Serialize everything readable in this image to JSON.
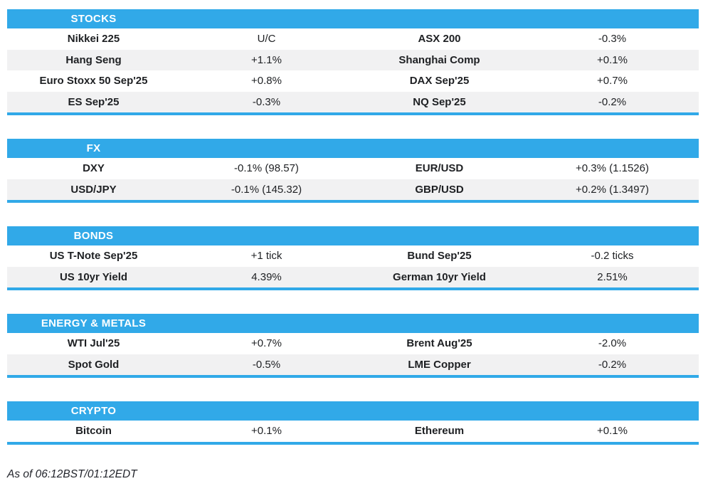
{
  "colors": {
    "accent": "#31a9e8",
    "row_alt": "#f1f1f2",
    "text": "#1e2023",
    "header_text": "#ffffff"
  },
  "sections": [
    {
      "title": "STOCKS",
      "rows": [
        [
          "Nikkei 225",
          "U/C",
          "ASX 200",
          "-0.3%"
        ],
        [
          "Hang Seng",
          "+1.1%",
          "Shanghai Comp",
          "+0.1%"
        ],
        [
          "Euro Stoxx 50 Sep'25",
          "+0.8%",
          "DAX Sep'25",
          "+0.7%"
        ],
        [
          "ES Sep'25",
          "-0.3%",
          "NQ Sep'25",
          "-0.2%"
        ]
      ]
    },
    {
      "title": "FX",
      "rows": [
        [
          "DXY",
          "-0.1% (98.57)",
          "EUR/USD",
          "+0.3% (1.1526)"
        ],
        [
          "USD/JPY",
          "-0.1% (145.32)",
          "GBP/USD",
          "+0.2% (1.3497)"
        ]
      ]
    },
    {
      "title": "BONDS",
      "rows": [
        [
          "US T-Note Sep'25",
          "+1 tick",
          "Bund Sep'25",
          "-0.2 ticks"
        ],
        [
          "US 10yr Yield",
          "4.39%",
          "German 10yr Yield",
          "2.51%"
        ]
      ]
    },
    {
      "title": "ENERGY & METALS",
      "rows": [
        [
          "WTI Jul'25",
          "+0.7%",
          "Brent Aug'25",
          "-2.0%"
        ],
        [
          "Spot Gold",
          "-0.5%",
          "LME Copper",
          "-0.2%"
        ]
      ]
    },
    {
      "title": "CRYPTO",
      "rows": [
        [
          "Bitcoin",
          "+0.1%",
          "Ethereum",
          "+0.1%"
        ]
      ]
    }
  ],
  "footer": {
    "as_of": "As of 06:12BST/01:12EDT"
  }
}
